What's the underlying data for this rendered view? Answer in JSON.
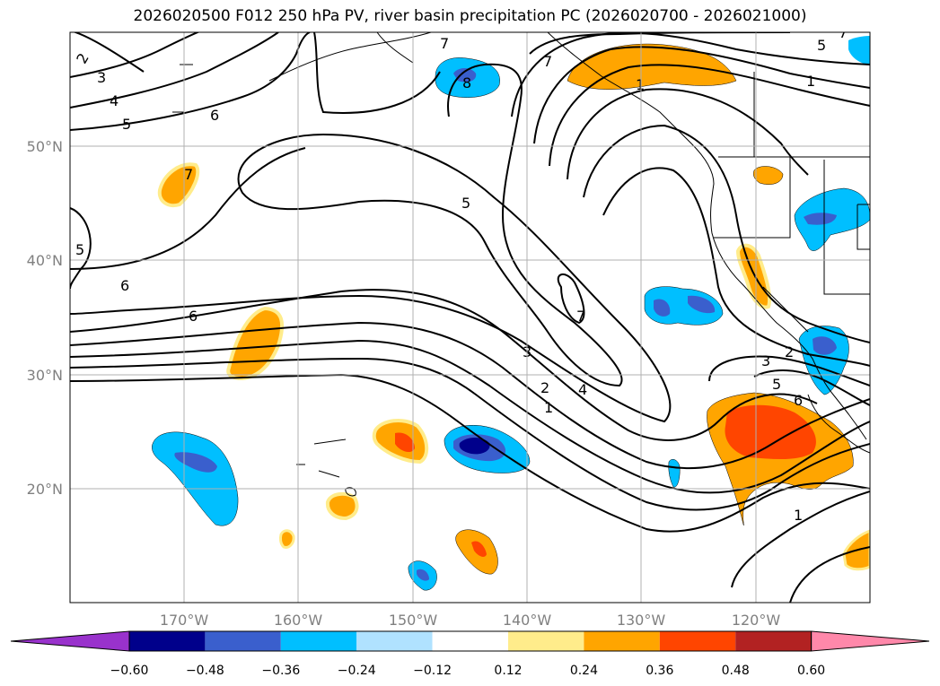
{
  "title": "2026020500 F012 250 hPa PV, river basin precipitation PC (2026020700 - 2026021000)",
  "lat_labels": [
    "50°N",
    "40°N",
    "30°N",
    "20°N"
  ],
  "lon_labels": [
    "170°W",
    "160°W",
    "150°W",
    "140°W",
    "130°W",
    "120°W"
  ],
  "colorbar": {
    "tick_labels": [
      "−0.60",
      "−0.48",
      "−0.36",
      "−0.24",
      "−0.12",
      "0.12",
      "0.24",
      "0.36",
      "0.48",
      "0.60"
    ],
    "colors": [
      "#9932cc",
      "#00008b",
      "#3a5fcd",
      "#00bfff",
      "#b0e2ff",
      "#ffffff",
      "#ffec8b",
      "#ffa500",
      "#ff4500",
      "#b22222",
      "#ff88aa"
    ]
  },
  "contour_labels": [
    "2",
    "3",
    "4",
    "5",
    "6",
    "7",
    "6",
    "5",
    "6",
    "6",
    "7",
    "8",
    "7",
    "5",
    "1",
    "7",
    "5",
    "3",
    "2",
    "4",
    "1",
    "3",
    "2",
    "5",
    "6",
    "1",
    "7",
    "1"
  ],
  "colors": {
    "grid": "#b0b0b0",
    "coast": "#000000",
    "contour": "#000000"
  }
}
